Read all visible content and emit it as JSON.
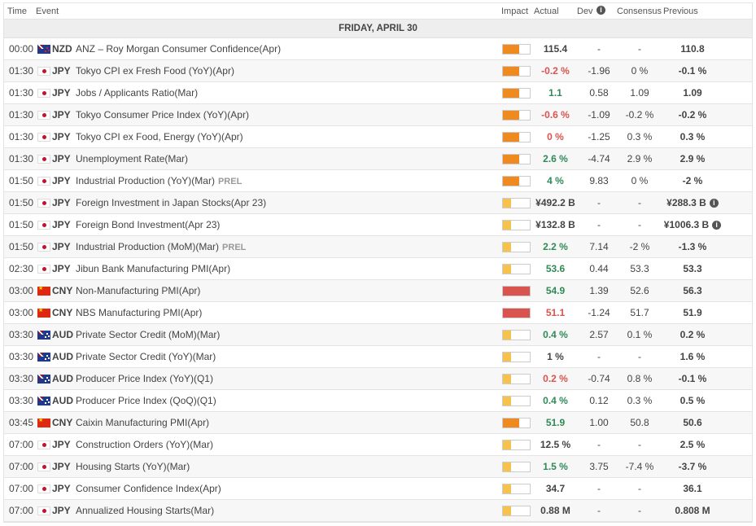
{
  "header": {
    "time": "Time",
    "event": "Event",
    "impact": "Impact",
    "actual": "Actual",
    "dev": "Dev",
    "consensus": "Consensus",
    "previous": "Previous"
  },
  "day_label": "FRIDAY, APRIL 30",
  "info_glyph": "i",
  "colors": {
    "impact_high": "#d9534f",
    "impact_medium": "#ee8a1f",
    "impact_low": "#f5c34d",
    "positive": "#2e8b57",
    "negative": "#d9534f"
  },
  "rows": [
    {
      "time": "00:00",
      "flag": "nz",
      "currency": "NZD",
      "event": "ANZ – Roy Morgan Consumer Confidence(Apr)",
      "prel": "",
      "impact": "medium",
      "actual": "115.4",
      "actual_tone": "neu",
      "dev": "-",
      "consensus": "-",
      "previous": "110.8",
      "info": false
    },
    {
      "time": "01:30",
      "flag": "jp",
      "currency": "JPY",
      "event": "Tokyo CPI ex Fresh Food (YoY)(Apr)",
      "prel": "",
      "impact": "medium",
      "actual": "-0.2 %",
      "actual_tone": "neg",
      "dev": "-1.96",
      "consensus": "0 %",
      "previous": "-0.1 %",
      "info": false
    },
    {
      "time": "01:30",
      "flag": "jp",
      "currency": "JPY",
      "event": "Jobs / Applicants Ratio(Mar)",
      "prel": "",
      "impact": "medium",
      "actual": "1.1",
      "actual_tone": "pos",
      "dev": "0.58",
      "consensus": "1.09",
      "previous": "1.09",
      "info": false
    },
    {
      "time": "01:30",
      "flag": "jp",
      "currency": "JPY",
      "event": "Tokyo Consumer Price Index (YoY)(Apr)",
      "prel": "",
      "impact": "medium",
      "actual": "-0.6 %",
      "actual_tone": "neg",
      "dev": "-1.09",
      "consensus": "-0.2 %",
      "previous": "-0.2 %",
      "info": false
    },
    {
      "time": "01:30",
      "flag": "jp",
      "currency": "JPY",
      "event": "Tokyo CPI ex Food, Energy (YoY)(Apr)",
      "prel": "",
      "impact": "medium",
      "actual": "0 %",
      "actual_tone": "neg",
      "dev": "-1.25",
      "consensus": "0.3 %",
      "previous": "0.3 %",
      "info": false
    },
    {
      "time": "01:30",
      "flag": "jp",
      "currency": "JPY",
      "event": "Unemployment Rate(Mar)",
      "prel": "",
      "impact": "medium",
      "actual": "2.6 %",
      "actual_tone": "pos",
      "dev": "-4.74",
      "consensus": "2.9 %",
      "previous": "2.9 %",
      "info": false
    },
    {
      "time": "01:50",
      "flag": "jp",
      "currency": "JPY",
      "event": "Industrial Production (YoY)(Mar)",
      "prel": "PREL",
      "impact": "medium",
      "actual": "4 %",
      "actual_tone": "pos",
      "dev": "9.83",
      "consensus": "0 %",
      "previous": "-2 %",
      "info": false
    },
    {
      "time": "01:50",
      "flag": "jp",
      "currency": "JPY",
      "event": "Foreign Investment in Japan Stocks(Apr 23)",
      "prel": "",
      "impact": "low",
      "actual": "¥492.2 B",
      "actual_tone": "neu",
      "dev": "-",
      "consensus": "-",
      "previous": "¥288.3 B",
      "info": true
    },
    {
      "time": "01:50",
      "flag": "jp",
      "currency": "JPY",
      "event": "Foreign Bond Investment(Apr 23)",
      "prel": "",
      "impact": "low",
      "actual": "¥132.8 B",
      "actual_tone": "neu",
      "dev": "-",
      "consensus": "-",
      "previous": "¥1006.3 B",
      "info": true
    },
    {
      "time": "01:50",
      "flag": "jp",
      "currency": "JPY",
      "event": "Industrial Production (MoM)(Mar)",
      "prel": "PREL",
      "impact": "low",
      "actual": "2.2 %",
      "actual_tone": "pos",
      "dev": "7.14",
      "consensus": "-2 %",
      "previous": "-1.3 %",
      "info": false
    },
    {
      "time": "02:30",
      "flag": "jp",
      "currency": "JPY",
      "event": "Jibun Bank Manufacturing PMI(Apr)",
      "prel": "",
      "impact": "low",
      "actual": "53.6",
      "actual_tone": "pos",
      "dev": "0.44",
      "consensus": "53.3",
      "previous": "53.3",
      "info": false
    },
    {
      "time": "03:00",
      "flag": "cn",
      "currency": "CNY",
      "event": "Non-Manufacturing PMI(Apr)",
      "prel": "",
      "impact": "high",
      "actual": "54.9",
      "actual_tone": "pos",
      "dev": "1.39",
      "consensus": "52.6",
      "previous": "56.3",
      "info": false
    },
    {
      "time": "03:00",
      "flag": "cn",
      "currency": "CNY",
      "event": "NBS Manufacturing PMI(Apr)",
      "prel": "",
      "impact": "high",
      "actual": "51.1",
      "actual_tone": "neg",
      "dev": "-1.24",
      "consensus": "51.7",
      "previous": "51.9",
      "info": false
    },
    {
      "time": "03:30",
      "flag": "au",
      "currency": "AUD",
      "event": "Private Sector Credit (MoM)(Mar)",
      "prel": "",
      "impact": "low",
      "actual": "0.4 %",
      "actual_tone": "pos",
      "dev": "2.57",
      "consensus": "0.1 %",
      "previous": "0.2 %",
      "info": false
    },
    {
      "time": "03:30",
      "flag": "au",
      "currency": "AUD",
      "event": "Private Sector Credit (YoY)(Mar)",
      "prel": "",
      "impact": "low",
      "actual": "1 %",
      "actual_tone": "neu",
      "dev": "-",
      "consensus": "-",
      "previous": "1.6 %",
      "info": false
    },
    {
      "time": "03:30",
      "flag": "au",
      "currency": "AUD",
      "event": "Producer Price Index (YoY)(Q1)",
      "prel": "",
      "impact": "low",
      "actual": "0.2 %",
      "actual_tone": "neg",
      "dev": "-0.74",
      "consensus": "0.8 %",
      "previous": "-0.1 %",
      "info": false
    },
    {
      "time": "03:30",
      "flag": "au",
      "currency": "AUD",
      "event": "Producer Price Index (QoQ)(Q1)",
      "prel": "",
      "impact": "low",
      "actual": "0.4 %",
      "actual_tone": "pos",
      "dev": "0.12",
      "consensus": "0.3 %",
      "previous": "0.5 %",
      "info": false
    },
    {
      "time": "03:45",
      "flag": "cn",
      "currency": "CNY",
      "event": "Caixin Manufacturing PMI(Apr)",
      "prel": "",
      "impact": "medium",
      "actual": "51.9",
      "actual_tone": "pos",
      "dev": "1.00",
      "consensus": "50.8",
      "previous": "50.6",
      "info": false
    },
    {
      "time": "07:00",
      "flag": "jp",
      "currency": "JPY",
      "event": "Construction Orders (YoY)(Mar)",
      "prel": "",
      "impact": "low",
      "actual": "12.5 %",
      "actual_tone": "neu",
      "dev": "-",
      "consensus": "-",
      "previous": "2.5 %",
      "info": false
    },
    {
      "time": "07:00",
      "flag": "jp",
      "currency": "JPY",
      "event": "Housing Starts (YoY)(Mar)",
      "prel": "",
      "impact": "low",
      "actual": "1.5 %",
      "actual_tone": "pos",
      "dev": "3.75",
      "consensus": "-7.4 %",
      "previous": "-3.7 %",
      "info": false
    },
    {
      "time": "07:00",
      "flag": "jp",
      "currency": "JPY",
      "event": "Consumer Confidence Index(Apr)",
      "prel": "",
      "impact": "low",
      "actual": "34.7",
      "actual_tone": "neu",
      "dev": "-",
      "consensus": "-",
      "previous": "36.1",
      "info": false
    },
    {
      "time": "07:00",
      "flag": "jp",
      "currency": "JPY",
      "event": "Annualized Housing Starts(Mar)",
      "prel": "",
      "impact": "low",
      "actual": "0.88 M",
      "actual_tone": "neu",
      "dev": "-",
      "consensus": "-",
      "previous": "0.808 M",
      "info": false
    }
  ]
}
